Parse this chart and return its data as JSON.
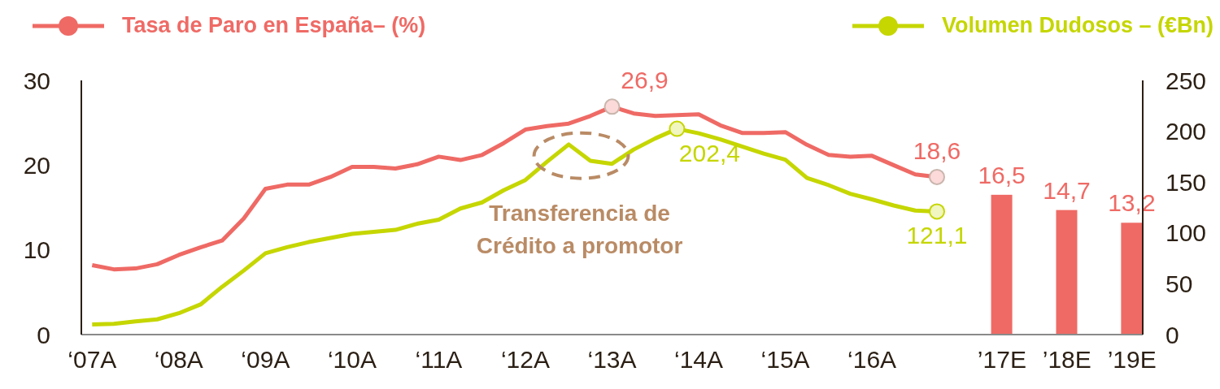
{
  "chart_data": {
    "type": "line",
    "categories": [
      "‘07A",
      null,
      null,
      null,
      "‘08A",
      null,
      null,
      null,
      "‘09A",
      null,
      null,
      null,
      "‘10A",
      null,
      null,
      null,
      "‘11A",
      null,
      null,
      null,
      "‘12A",
      null,
      null,
      null,
      "‘13A",
      null,
      null,
      null,
      "‘14A",
      null,
      null,
      null,
      "‘15A",
      null,
      null,
      null,
      "‘16A",
      null,
      null,
      null,
      null,
      null,
      "’17E",
      null,
      null,
      "’18E",
      null,
      null,
      "’19E"
    ],
    "series": [
      {
        "name": "Tasa de Paro en España– (%)",
        "color": "#ef6a65",
        "values": [
          8.2,
          7.7,
          7.8,
          8.3,
          9.4,
          10.3,
          11.1,
          13.7,
          17.2,
          17.7,
          17.7,
          18.6,
          19.8,
          19.8,
          19.6,
          20.1,
          21.0,
          20.6,
          21.2,
          22.6,
          24.2,
          24.6,
          24.9,
          25.8,
          26.9,
          26.1,
          25.8,
          25.9,
          26.0,
          24.7,
          23.8,
          23.8,
          23.9,
          22.4,
          21.2,
          21.0,
          21.1,
          20.0,
          18.9,
          18.6,
          null,
          null,
          null,
          null,
          null,
          null,
          null,
          null,
          null
        ],
        "value_labels": [
          null,
          null,
          null,
          null,
          null,
          null,
          null,
          null,
          null,
          null,
          null,
          null,
          null,
          null,
          null,
          null,
          null,
          null,
          null,
          null,
          null,
          null,
          null,
          null,
          "26,9",
          null,
          null,
          null,
          null,
          null,
          null,
          null,
          null,
          null,
          null,
          null,
          null,
          null,
          null,
          "18,6",
          null,
          null,
          null,
          null,
          null,
          null,
          null,
          null,
          null
        ]
      },
      {
        "type": "bar",
        "color": "#ef6a65",
        "values": [
          null,
          null,
          null,
          null,
          null,
          null,
          null,
          null,
          null,
          null,
          null,
          null,
          null,
          null,
          null,
          null,
          null,
          null,
          null,
          null,
          null,
          null,
          null,
          null,
          null,
          null,
          null,
          null,
          null,
          null,
          null,
          null,
          null,
          null,
          null,
          null,
          null,
          null,
          null,
          null,
          null,
          null,
          16.5,
          null,
          null,
          14.7,
          null,
          null,
          13.2
        ],
        "value_labels": [
          null,
          null,
          null,
          null,
          null,
          null,
          null,
          null,
          null,
          null,
          null,
          null,
          null,
          null,
          null,
          null,
          null,
          null,
          null,
          null,
          null,
          null,
          null,
          null,
          null,
          null,
          null,
          null,
          null,
          null,
          null,
          null,
          null,
          null,
          null,
          null,
          null,
          null,
          null,
          null,
          null,
          null,
          "16,5",
          null,
          null,
          "14,7",
          null,
          null,
          "13,2"
        ]
      },
      {
        "name": "Volumen Dudosos – (€Bn)",
        "color": "#c5d600",
        "axis": "y2",
        "values": [
          9.9,
          10.6,
          13,
          15,
          21,
          29.6,
          47,
          63,
          80,
          86,
          91,
          95,
          99,
          101,
          103,
          109,
          113,
          124,
          130,
          142,
          152,
          170,
          187,
          171,
          168,
          182,
          193,
          202.4,
          198,
          192,
          185,
          178,
          172,
          154,
          147,
          138.5,
          133,
          127,
          122,
          121.1,
          null,
          null,
          null,
          null,
          null,
          null,
          null,
          null,
          null
        ],
        "value_labels": [
          null,
          null,
          null,
          null,
          null,
          null,
          null,
          null,
          null,
          null,
          null,
          null,
          null,
          null,
          null,
          null,
          null,
          null,
          null,
          null,
          null,
          null,
          null,
          null,
          null,
          null,
          null,
          "202,4",
          null,
          null,
          null,
          null,
          null,
          null,
          null,
          null,
          null,
          null,
          null,
          "121,1",
          null,
          null,
          null,
          null,
          null,
          null,
          null,
          null,
          null
        ]
      }
    ],
    "ylim": [
      0,
      30
    ],
    "yticks": [
      0,
      10,
      20,
      30
    ],
    "y2lim": [
      0,
      250
    ],
    "y2ticks": [
      0,
      50,
      100,
      150,
      200,
      250
    ],
    "grid": false,
    "legend": "top",
    "line_style": "solid",
    "annotations": [
      "Transferencia de Crédito a promotor"
    ]
  }
}
